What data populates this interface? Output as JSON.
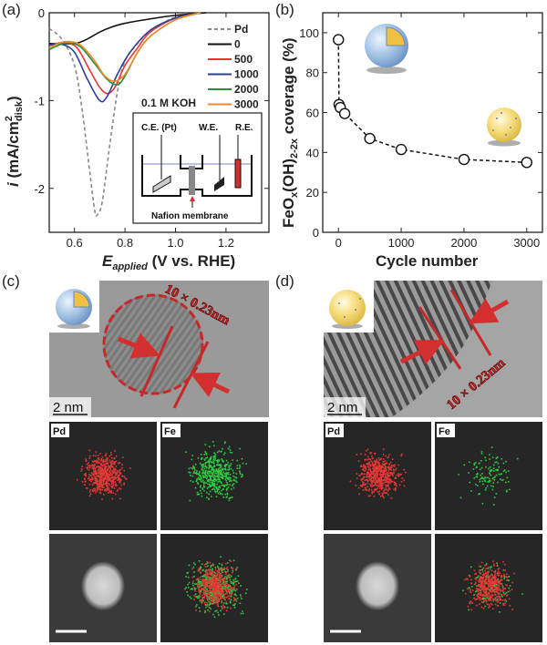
{
  "panels": {
    "a": "(a)",
    "b": "(b)",
    "c": "(c)",
    "d": "(d)"
  },
  "chart_data": [
    {
      "type": "line",
      "panel": "(a)",
      "xlabel_main": "E",
      "xlabel_sub": "applied",
      "xlabel_rest": " (V vs. RHE)",
      "ylabel_main": "i",
      "ylabel_rest": " (mA/cm",
      "ylabel_sup": "2",
      "ylabel_sub": "disk",
      "ylabel_end": ")",
      "xlim": [
        0.5,
        1.37
      ],
      "ylim": [
        -2.5,
        0
      ],
      "xticks": [
        "0.6",
        "0.8",
        "1.0",
        "1.2"
      ],
      "xtick_values": [
        0.6,
        0.8,
        1.0,
        1.2
      ],
      "yticks": [
        "0",
        "-1",
        "-2"
      ],
      "ytick_values": [
        0,
        -1,
        -2
      ],
      "annotation": "0.1 M KOH",
      "legend_position": "top-right",
      "series": [
        {
          "name": "Pd",
          "color": "#888888",
          "dashed": true,
          "x": [
            0.5,
            0.55,
            0.6,
            0.63,
            0.66,
            0.68,
            0.69,
            0.71,
            0.74,
            0.77,
            0.8,
            0.85,
            0.9,
            0.95,
            1.0,
            1.1
          ],
          "y": [
            -0.18,
            -0.3,
            -0.6,
            -1.1,
            -1.8,
            -2.25,
            -2.3,
            -2.15,
            -1.5,
            -0.9,
            -0.55,
            -0.35,
            -0.2,
            -0.12,
            -0.05,
            0
          ]
        },
        {
          "name": "0",
          "color": "#111111",
          "x": [
            0.5,
            0.6,
            0.65,
            0.7,
            0.75,
            0.8,
            0.9,
            1.0,
            1.12
          ],
          "y": [
            -0.35,
            -0.35,
            -0.3,
            -0.22,
            -0.16,
            -0.12,
            -0.07,
            -0.03,
            0
          ]
        },
        {
          "name": "500",
          "color": "#e53935",
          "x": [
            0.5,
            0.56,
            0.61,
            0.66,
            0.7,
            0.73,
            0.76,
            0.8,
            0.85,
            0.9,
            1.0,
            1.1
          ],
          "y": [
            -0.37,
            -0.34,
            -0.4,
            -0.65,
            -0.85,
            -0.92,
            -0.85,
            -0.6,
            -0.4,
            -0.22,
            -0.06,
            0
          ]
        },
        {
          "name": "1000",
          "color": "#2e3f9e",
          "x": [
            0.5,
            0.55,
            0.6,
            0.65,
            0.7,
            0.73,
            0.77,
            0.82,
            0.9,
            1.0,
            1.1
          ],
          "y": [
            -0.37,
            -0.36,
            -0.45,
            -0.75,
            -1.0,
            -0.95,
            -0.7,
            -0.45,
            -0.2,
            -0.06,
            0
          ]
        },
        {
          "name": "2000",
          "color": "#2e8b3a",
          "x": [
            0.5,
            0.56,
            0.62,
            0.68,
            0.73,
            0.77,
            0.8,
            0.85,
            0.9,
            1.0,
            1.1
          ],
          "y": [
            -0.42,
            -0.35,
            -0.38,
            -0.58,
            -0.76,
            -0.82,
            -0.72,
            -0.45,
            -0.27,
            -0.08,
            0
          ]
        },
        {
          "name": "3000",
          "color": "#f0892b",
          "x": [
            0.5,
            0.56,
            0.62,
            0.68,
            0.72,
            0.76,
            0.8,
            0.85,
            0.9,
            1.0,
            1.1
          ],
          "y": [
            -0.4,
            -0.33,
            -0.36,
            -0.55,
            -0.72,
            -0.78,
            -0.7,
            -0.45,
            -0.27,
            -0.08,
            0
          ]
        }
      ],
      "inset": {
        "ce": "C.E. (Pt)",
        "we": "W.E.",
        "re": "R.E.",
        "membrane": "Nafion membrane"
      }
    },
    {
      "type": "scatter",
      "panel": "(b)",
      "xlabel": "Cycle number",
      "ylabel_a": "FeO",
      "ylabel_x": "x",
      "ylabel_b": "(OH)",
      "ylabel_sub": "2-2x",
      "ylabel_c": " coverage (%)",
      "xlim": [
        -250,
        3250
      ],
      "ylim": [
        0,
        110
      ],
      "xticks": [
        "0",
        "1000",
        "2000",
        "3000"
      ],
      "xtick_values": [
        0,
        1000,
        2000,
        3000
      ],
      "yticks": [
        "0",
        "20",
        "40",
        "60",
        "80",
        "100"
      ],
      "ytick_values": [
        0,
        20,
        40,
        60,
        80,
        100
      ],
      "line": "dashed",
      "x": [
        0,
        10,
        30,
        100,
        500,
        1000,
        2000,
        3000
      ],
      "y": [
        96.5,
        64,
        62.5,
        59.5,
        47,
        41.5,
        36.5,
        35
      ]
    }
  ],
  "micrographs": {
    "c": {
      "annotation": "10 × 0.23nm",
      "scale_bar": "2 nm",
      "map_pd": "Pd",
      "map_fe": "Fe"
    },
    "d": {
      "annotation": "10 × 0.23nm",
      "scale_bar": "2 nm",
      "map_pd": "Pd",
      "map_fe": "Fe"
    }
  },
  "colors": {
    "pd_map": "#e53935",
    "fe_map": "#2ecc40",
    "arrow": "#d32f2f"
  }
}
